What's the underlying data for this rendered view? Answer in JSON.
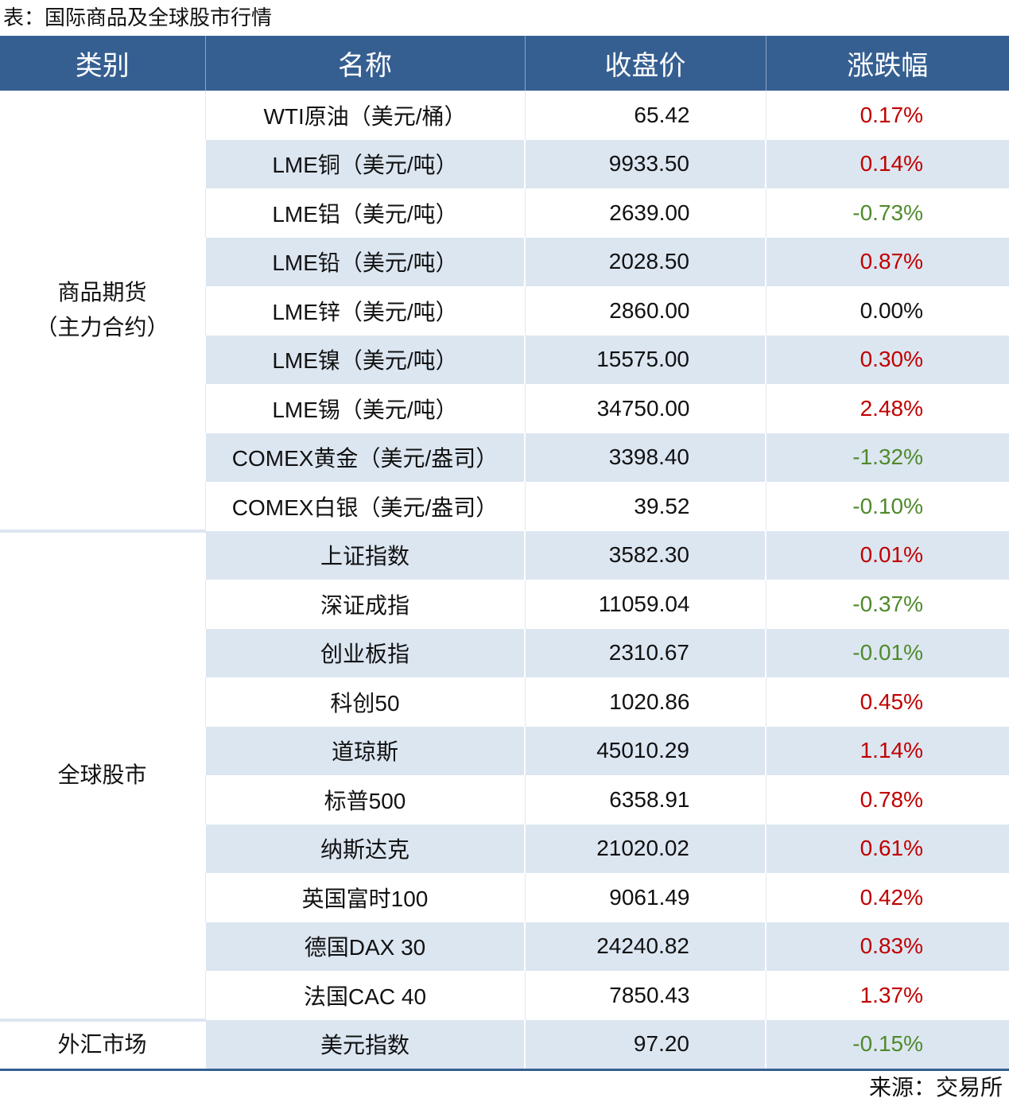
{
  "title": "表：国际商品及全球股市行情",
  "table": {
    "header": [
      "类别",
      "名称",
      "收盘价",
      "涨跌幅"
    ],
    "groups": [
      {
        "category": "商品期货\n（主力合约）",
        "rows": [
          [
            "WTI原油（美元/桶）",
            "65.42",
            "0.17%"
          ],
          [
            "LME铜（美元/吨）",
            "9933.50",
            "0.14%"
          ],
          [
            "LME铝（美元/吨）",
            "2639.00",
            "-0.73%"
          ],
          [
            "LME铅（美元/吨）",
            "2028.50",
            "0.87%"
          ],
          [
            "LME锌（美元/吨）",
            "2860.00",
            "0.00%"
          ],
          [
            "LME镍（美元/吨）",
            "15575.00",
            "0.30%"
          ],
          [
            "LME锡（美元/吨）",
            "34750.00",
            "2.48%"
          ],
          [
            "COMEX黄金（美元/盎司）",
            "3398.40",
            "-1.32%"
          ],
          [
            "COMEX白银（美元/盎司）",
            "39.52",
            "-0.10%"
          ]
        ]
      },
      {
        "category": "全球股市",
        "rows": [
          [
            "上证指数",
            "3582.30",
            "0.01%"
          ],
          [
            "深证成指",
            "11059.04",
            "-0.37%"
          ],
          [
            "创业板指",
            "2310.67",
            "-0.01%"
          ],
          [
            "科创50",
            "1020.86",
            "0.45%"
          ],
          [
            "道琼斯",
            "45010.29",
            "1.14%"
          ],
          [
            "标普500",
            "6358.91",
            "0.78%"
          ],
          [
            "纳斯达克",
            "21020.02",
            "0.61%"
          ],
          [
            "英国富时100",
            "9061.49",
            "0.42%"
          ],
          [
            "德国DAX 30",
            "24240.82",
            "0.83%"
          ],
          [
            "法国CAC 40",
            "7850.43",
            "1.37%"
          ]
        ]
      },
      {
        "category": "外汇市场",
        "rows": [
          [
            "美元指数",
            "97.20",
            "-0.15%"
          ]
        ]
      }
    ]
  },
  "source": "来源：交易所"
}
